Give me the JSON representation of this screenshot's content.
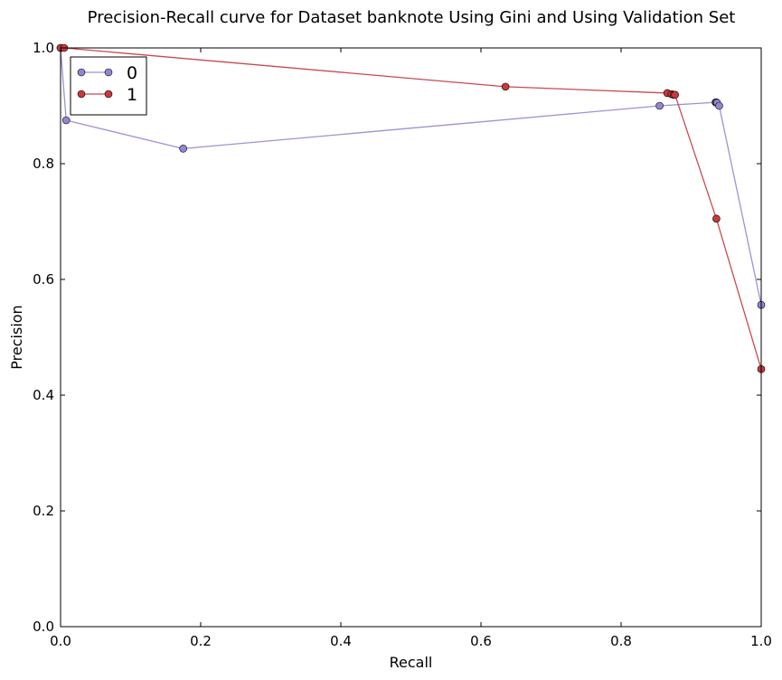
{
  "chart_data": {
    "type": "line",
    "title": "Precision-Recall curve for Dataset banknote Using Gini and Using Validation Set",
    "xlabel": "Recall",
    "ylabel": "Precision",
    "xlim": [
      0.0,
      1.0
    ],
    "ylim": [
      0.0,
      1.0
    ],
    "x_ticks": [
      "0.0",
      "0.2",
      "0.4",
      "0.6",
      "0.8",
      "1.0"
    ],
    "y_ticks": [
      "0.0",
      "0.2",
      "0.4",
      "0.6",
      "0.8",
      "1.0"
    ],
    "grid": false,
    "legend_position": "top-left",
    "series": [
      {
        "name": "0",
        "color": "#9b93d6",
        "marker_fill": "#8f88d0",
        "points": [
          [
            0.0,
            1.0
          ],
          [
            0.008,
            0.875
          ],
          [
            0.175,
            0.826
          ],
          [
            0.855,
            0.9
          ],
          [
            0.935,
            0.906
          ],
          [
            0.936,
            0.906
          ],
          [
            0.937,
            0.905
          ],
          [
            0.94,
            0.9
          ],
          [
            1.0,
            0.556
          ]
        ]
      },
      {
        "name": "1",
        "color": "#c84a4f",
        "marker_fill": "#c8393e",
        "points": [
          [
            0.0,
            1.0
          ],
          [
            0.005,
            1.0
          ],
          [
            0.635,
            0.933
          ],
          [
            0.866,
            0.922
          ],
          [
            0.872,
            0.92
          ],
          [
            0.875,
            0.919
          ],
          [
            0.877,
            0.919
          ],
          [
            0.936,
            0.705
          ],
          [
            1.0,
            0.445
          ]
        ]
      }
    ]
  }
}
